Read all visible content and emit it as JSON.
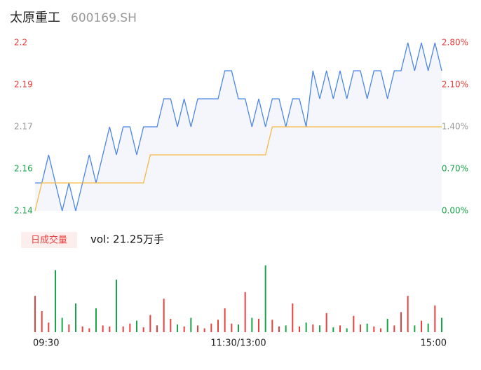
{
  "header": {
    "name": "太原重工",
    "code": "600169.SH"
  },
  "chart_data": [
    {
      "type": "line",
      "x": [
        0,
        4,
        8,
        12,
        16,
        20,
        24,
        28,
        32,
        36,
        40,
        44,
        48,
        52,
        56,
        60,
        64,
        68,
        72,
        76,
        80,
        84,
        88,
        92,
        96,
        100,
        104,
        108,
        112,
        116,
        120,
        124,
        128,
        132,
        136,
        140,
        144,
        148,
        152,
        156,
        160,
        164,
        168,
        172,
        176,
        180,
        184,
        188,
        192,
        196,
        200,
        204,
        208,
        212,
        216,
        220,
        224,
        228,
        232,
        236,
        240
      ],
      "xlim": [
        0,
        240
      ],
      "series": [
        {
          "color": "#4a86e8",
          "values": [
            2.15,
            2.15,
            2.16,
            2.15,
            2.14,
            2.15,
            2.14,
            2.15,
            2.16,
            2.15,
            2.16,
            2.17,
            2.16,
            2.17,
            2.17,
            2.16,
            2.17,
            2.17,
            2.17,
            2.18,
            2.18,
            2.17,
            2.18,
            2.17,
            2.18,
            2.18,
            2.18,
            2.18,
            2.19,
            2.19,
            2.18,
            2.18,
            2.17,
            2.18,
            2.17,
            2.18,
            2.18,
            2.17,
            2.18,
            2.18,
            2.17,
            2.19,
            2.18,
            2.19,
            2.18,
            2.19,
            2.18,
            2.19,
            2.19,
            2.18,
            2.19,
            2.19,
            2.18,
            2.19,
            2.19,
            2.2,
            2.19,
            2.2,
            2.19,
            2.2,
            2.19
          ]
        },
        {
          "color": "#f5b942",
          "values": [
            2.14,
            2.15,
            2.15,
            2.15,
            2.15,
            2.15,
            2.15,
            2.15,
            2.15,
            2.15,
            2.15,
            2.15,
            2.15,
            2.15,
            2.15,
            2.15,
            2.15,
            2.16,
            2.16,
            2.16,
            2.16,
            2.16,
            2.16,
            2.16,
            2.16,
            2.16,
            2.16,
            2.16,
            2.16,
            2.16,
            2.16,
            2.16,
            2.16,
            2.16,
            2.16,
            2.17,
            2.17,
            2.17,
            2.17,
            2.17,
            2.17,
            2.17,
            2.17,
            2.17,
            2.17,
            2.17,
            2.17,
            2.17,
            2.17,
            2.17,
            2.17,
            2.17,
            2.17,
            2.17,
            2.17,
            2.17,
            2.17,
            2.17,
            2.17,
            2.17,
            2.17
          ]
        }
      ],
      "ylim": [
        2.14,
        2.2
      ],
      "yticks": [
        2.14,
        {
          "value": 2.155,
          "label": "2.16"
        },
        2.17,
        {
          "value": 2.185,
          "label": "2.19"
        },
        2.2
      ],
      "y2lim": [
        0,
        2.8
      ],
      "y2ticks": [
        {
          "value": 0,
          "label": "0.00%"
        },
        {
          "value": 0.7,
          "label": "0.70%"
        },
        {
          "value": 1.4,
          "label": "1.40%"
        },
        {
          "value": 2.1,
          "label": "2.10%"
        },
        {
          "value": 2.8,
          "label": "2.80%"
        }
      ]
    },
    {
      "type": "bar",
      "title": "日成交量",
      "subtitle": "vol: 21.25万手",
      "up_color": "#e8413e",
      "down_color": "#1aa34a",
      "x": [
        0,
        4,
        8,
        12,
        16,
        20,
        24,
        28,
        32,
        36,
        40,
        44,
        48,
        52,
        56,
        60,
        64,
        68,
        72,
        76,
        80,
        84,
        88,
        92,
        96,
        100,
        104,
        108,
        112,
        116,
        120,
        124,
        128,
        132,
        136,
        140,
        144,
        148,
        152,
        156,
        160,
        164,
        168,
        172,
        176,
        180,
        184,
        188,
        192,
        196,
        200,
        204,
        208,
        212,
        216,
        220,
        224,
        228,
        232,
        236,
        240
      ],
      "xlim": [
        0,
        240
      ],
      "values": [
        3800,
        2200,
        1000,
        6500,
        1500,
        800,
        3000,
        600,
        400,
        2500,
        700,
        600,
        5500,
        600,
        900,
        1200,
        500,
        1800,
        700,
        3500,
        1400,
        800,
        600,
        1500,
        700,
        400,
        900,
        1300,
        2500,
        900,
        800,
        4200,
        1500,
        1400,
        7000,
        1300,
        600,
        700,
        3000,
        600,
        1000,
        800,
        700,
        2000,
        500,
        700,
        400,
        1700,
        800,
        900,
        600,
        400,
        1400,
        700,
        2100,
        3800,
        700,
        1200,
        900,
        2800,
        1500
      ],
      "ylim": [
        0,
        8000
      ],
      "xticks": [
        {
          "value": 0,
          "label": "09:30"
        },
        {
          "value": 120,
          "label": "11:30/13:00"
        },
        {
          "value": 240,
          "label": "15:00"
        }
      ]
    }
  ]
}
